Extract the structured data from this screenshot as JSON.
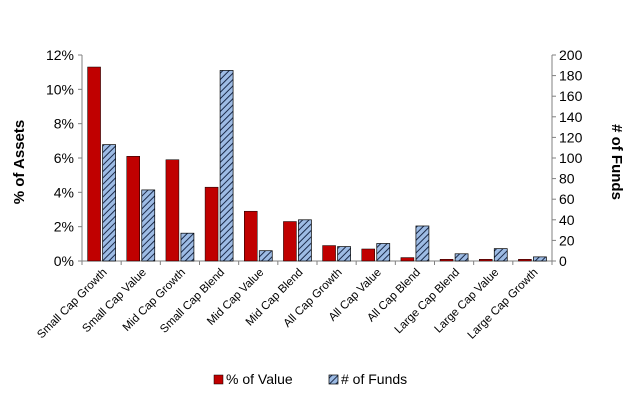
{
  "chart_data": {
    "type": "bar",
    "categories": [
      "Small Cap Growth",
      "Small Cap Value",
      "Mid Cap Growth",
      "Small Cap Blend",
      "Mid Cap Value",
      "Mid Cap Blend",
      "All Cap Growth",
      "All Cap Value",
      "All Cap Blend",
      "Large Cap Blend",
      "Large Cap Value",
      "Large Cap Growth"
    ],
    "series": [
      {
        "name": "% of Value",
        "axis": "left",
        "unit": "%",
        "color": "#c00000",
        "values": [
          11.3,
          6.1,
          5.9,
          4.3,
          2.9,
          2.3,
          0.9,
          0.7,
          0.2,
          0.1,
          0.1,
          0.1
        ]
      },
      {
        "name": "# of Funds",
        "axis": "right",
        "color": "#7fa7d8",
        "pattern": "diagonal-stripes",
        "values": [
          113,
          69,
          27,
          185,
          10,
          40,
          14,
          17,
          34,
          7,
          12,
          4
        ]
      }
    ],
    "ylabel": "% of Assets",
    "y2label": "# of Funds",
    "ylim": [
      0,
      12
    ],
    "y2lim": [
      0,
      200
    ],
    "yticks": [
      "0%",
      "2%",
      "4%",
      "6%",
      "8%",
      "10%",
      "12%"
    ],
    "y2ticks": [
      "0",
      "20",
      "40",
      "60",
      "80",
      "100",
      "120",
      "140",
      "160",
      "180",
      "200"
    ],
    "grid": false,
    "legend_position": "bottom"
  }
}
